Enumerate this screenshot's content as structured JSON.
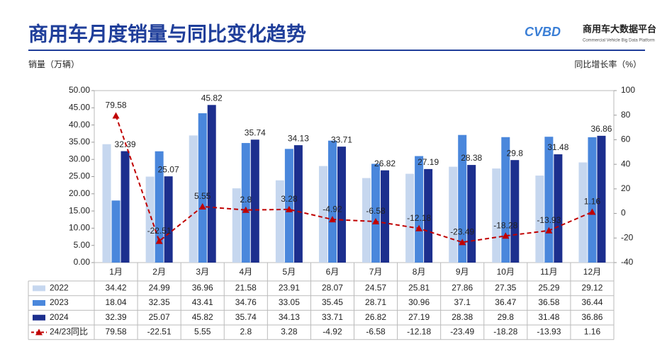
{
  "logo": {
    "mark": "CVBD",
    "name": "商用车大数据平台",
    "subtitle": "Commercial Vehicle Big Data Platform"
  },
  "chart_data": {
    "type": "bar",
    "title": "商用车月度销量与同比变化趋势",
    "y_label": "销量（万辆）",
    "y2_label": "同比增长率（%）",
    "categories": [
      "1月",
      "2月",
      "3月",
      "4月",
      "5月",
      "6月",
      "7月",
      "8月",
      "9月",
      "10月",
      "11月",
      "12月"
    ],
    "series": [
      {
        "name": "2022",
        "color": "#c6d7ef",
        "values": [
          34.42,
          24.99,
          36.96,
          21.58,
          23.91,
          28.07,
          24.57,
          25.81,
          27.86,
          27.35,
          25.29,
          29.12
        ]
      },
      {
        "name": "2023",
        "color": "#4a87dc",
        "values": [
          18.04,
          32.35,
          43.41,
          34.76,
          33.05,
          35.45,
          28.71,
          30.96,
          37.1,
          36.47,
          36.58,
          36.44
        ]
      },
      {
        "name": "2024",
        "color": "#1c2f8e",
        "values": [
          32.39,
          25.07,
          45.82,
          35.74,
          34.13,
          33.71,
          26.82,
          27.19,
          28.38,
          29.8,
          31.48,
          36.86
        ]
      },
      {
        "name": "24/23同比",
        "color": "#c00000",
        "type": "line",
        "axis": "y2",
        "values": [
          79.58,
          -22.51,
          5.55,
          2.8,
          3.28,
          -4.92,
          -6.58,
          -12.18,
          -23.49,
          -18.28,
          -13.93,
          1.16
        ]
      }
    ],
    "ylim": [
      0,
      50
    ],
    "yticks": [
      {
        "value": 0,
        "label": "0.00"
      },
      {
        "value": 5,
        "label": "5.00"
      },
      {
        "value": 10,
        "label": "10.00"
      },
      {
        "value": 15,
        "label": "15.00"
      },
      {
        "value": 20,
        "label": "20.00"
      },
      {
        "value": 25,
        "label": "25.00"
      },
      {
        "value": 30,
        "label": "30.00"
      },
      {
        "value": 35,
        "label": "35.00"
      },
      {
        "value": 40,
        "label": "40.00"
      },
      {
        "value": 45,
        "label": "45.00"
      },
      {
        "value": 50,
        "label": "50.00"
      }
    ],
    "y2lim": [
      -40,
      100
    ],
    "y2ticks": [
      -40,
      -20,
      0,
      20,
      40,
      60,
      80,
      100
    ]
  }
}
